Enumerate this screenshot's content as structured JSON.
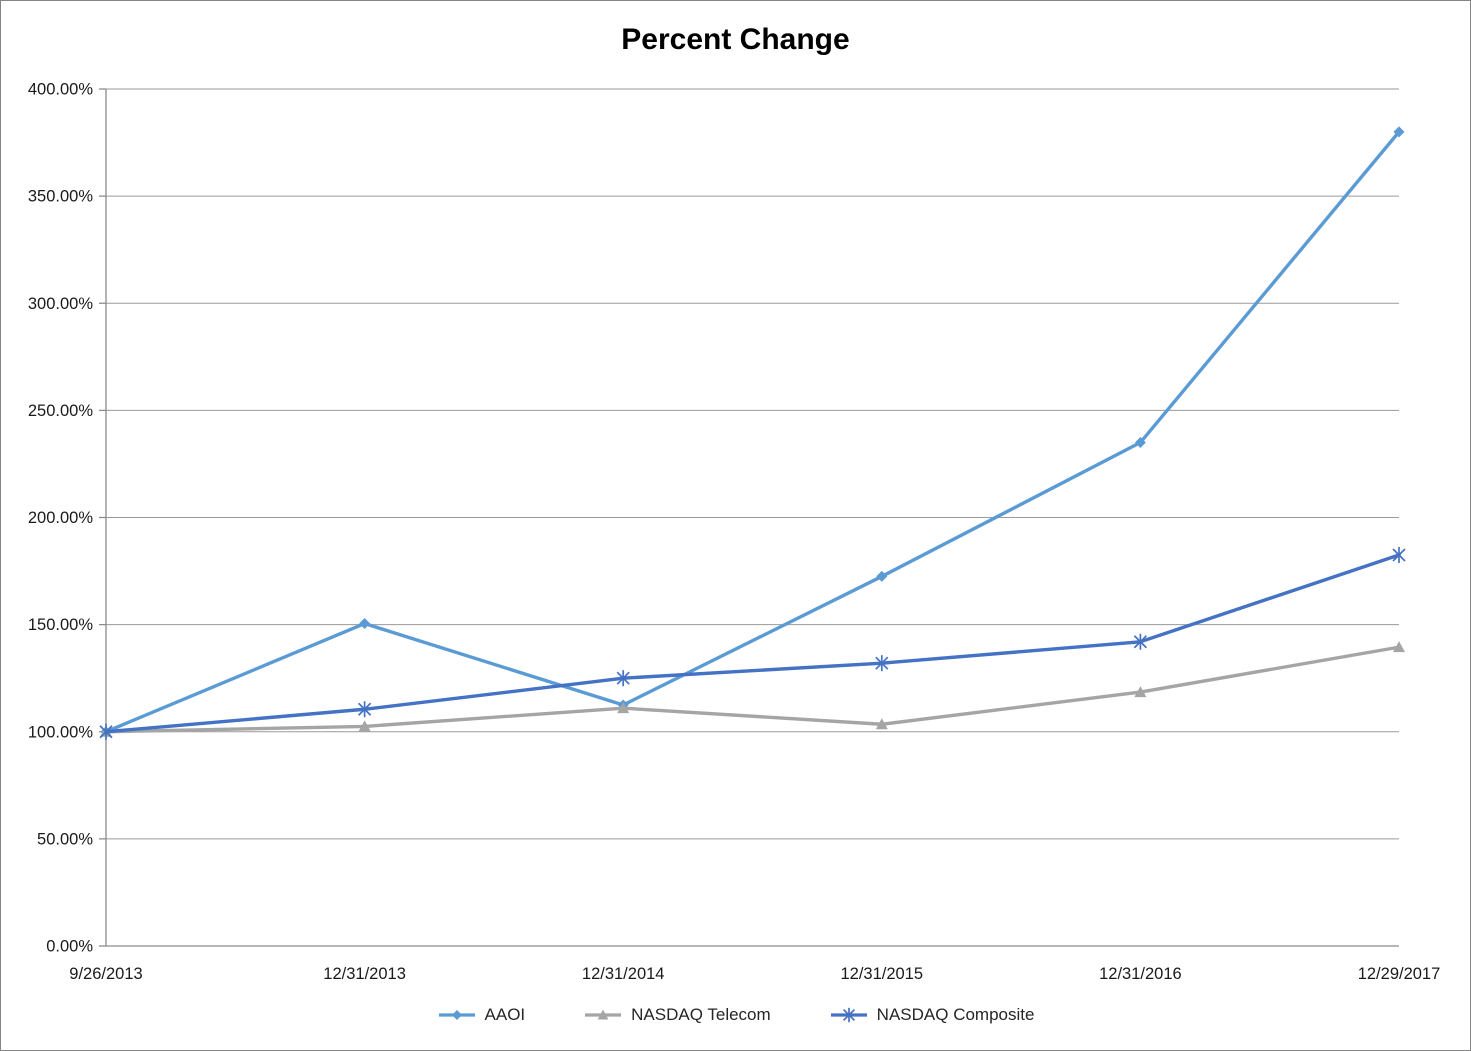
{
  "chart_data": {
    "type": "line",
    "title": "Percent Change",
    "categories": [
      "9/26/2013",
      "12/31/2013",
      "12/31/2014",
      "12/31/2015",
      "12/31/2016",
      "12/29/2017"
    ],
    "series": [
      {
        "name": "AAOI",
        "marker": "diamond",
        "color": "#5B9BD5",
        "values": [
          100,
          150.5,
          112.5,
          172.5,
          235,
          380
        ]
      },
      {
        "name": "NASDAQ Telecom",
        "marker": "triangle",
        "color": "#A5A5A5",
        "values": [
          100,
          102.5,
          111,
          103.5,
          118.5,
          139.5
        ]
      },
      {
        "name": "NASDAQ Composite",
        "marker": "asterisk",
        "color": "#4472C4",
        "values": [
          100,
          110.5,
          125,
          132,
          142,
          182.5
        ]
      }
    ],
    "y_axis": {
      "min": 0,
      "max": 400,
      "step": 50,
      "tick_labels": [
        "0.00%",
        "50.00%",
        "100.00%",
        "150.00%",
        "200.00%",
        "250.00%",
        "300.00%",
        "350.00%",
        "400.00%"
      ]
    },
    "grid": true,
    "legend_position": "bottom",
    "colors": {
      "axis": "#8c8c8c",
      "gridline": "#9a9a9a",
      "tick_text": "#1a1a1a",
      "title_text": "#000000"
    }
  }
}
